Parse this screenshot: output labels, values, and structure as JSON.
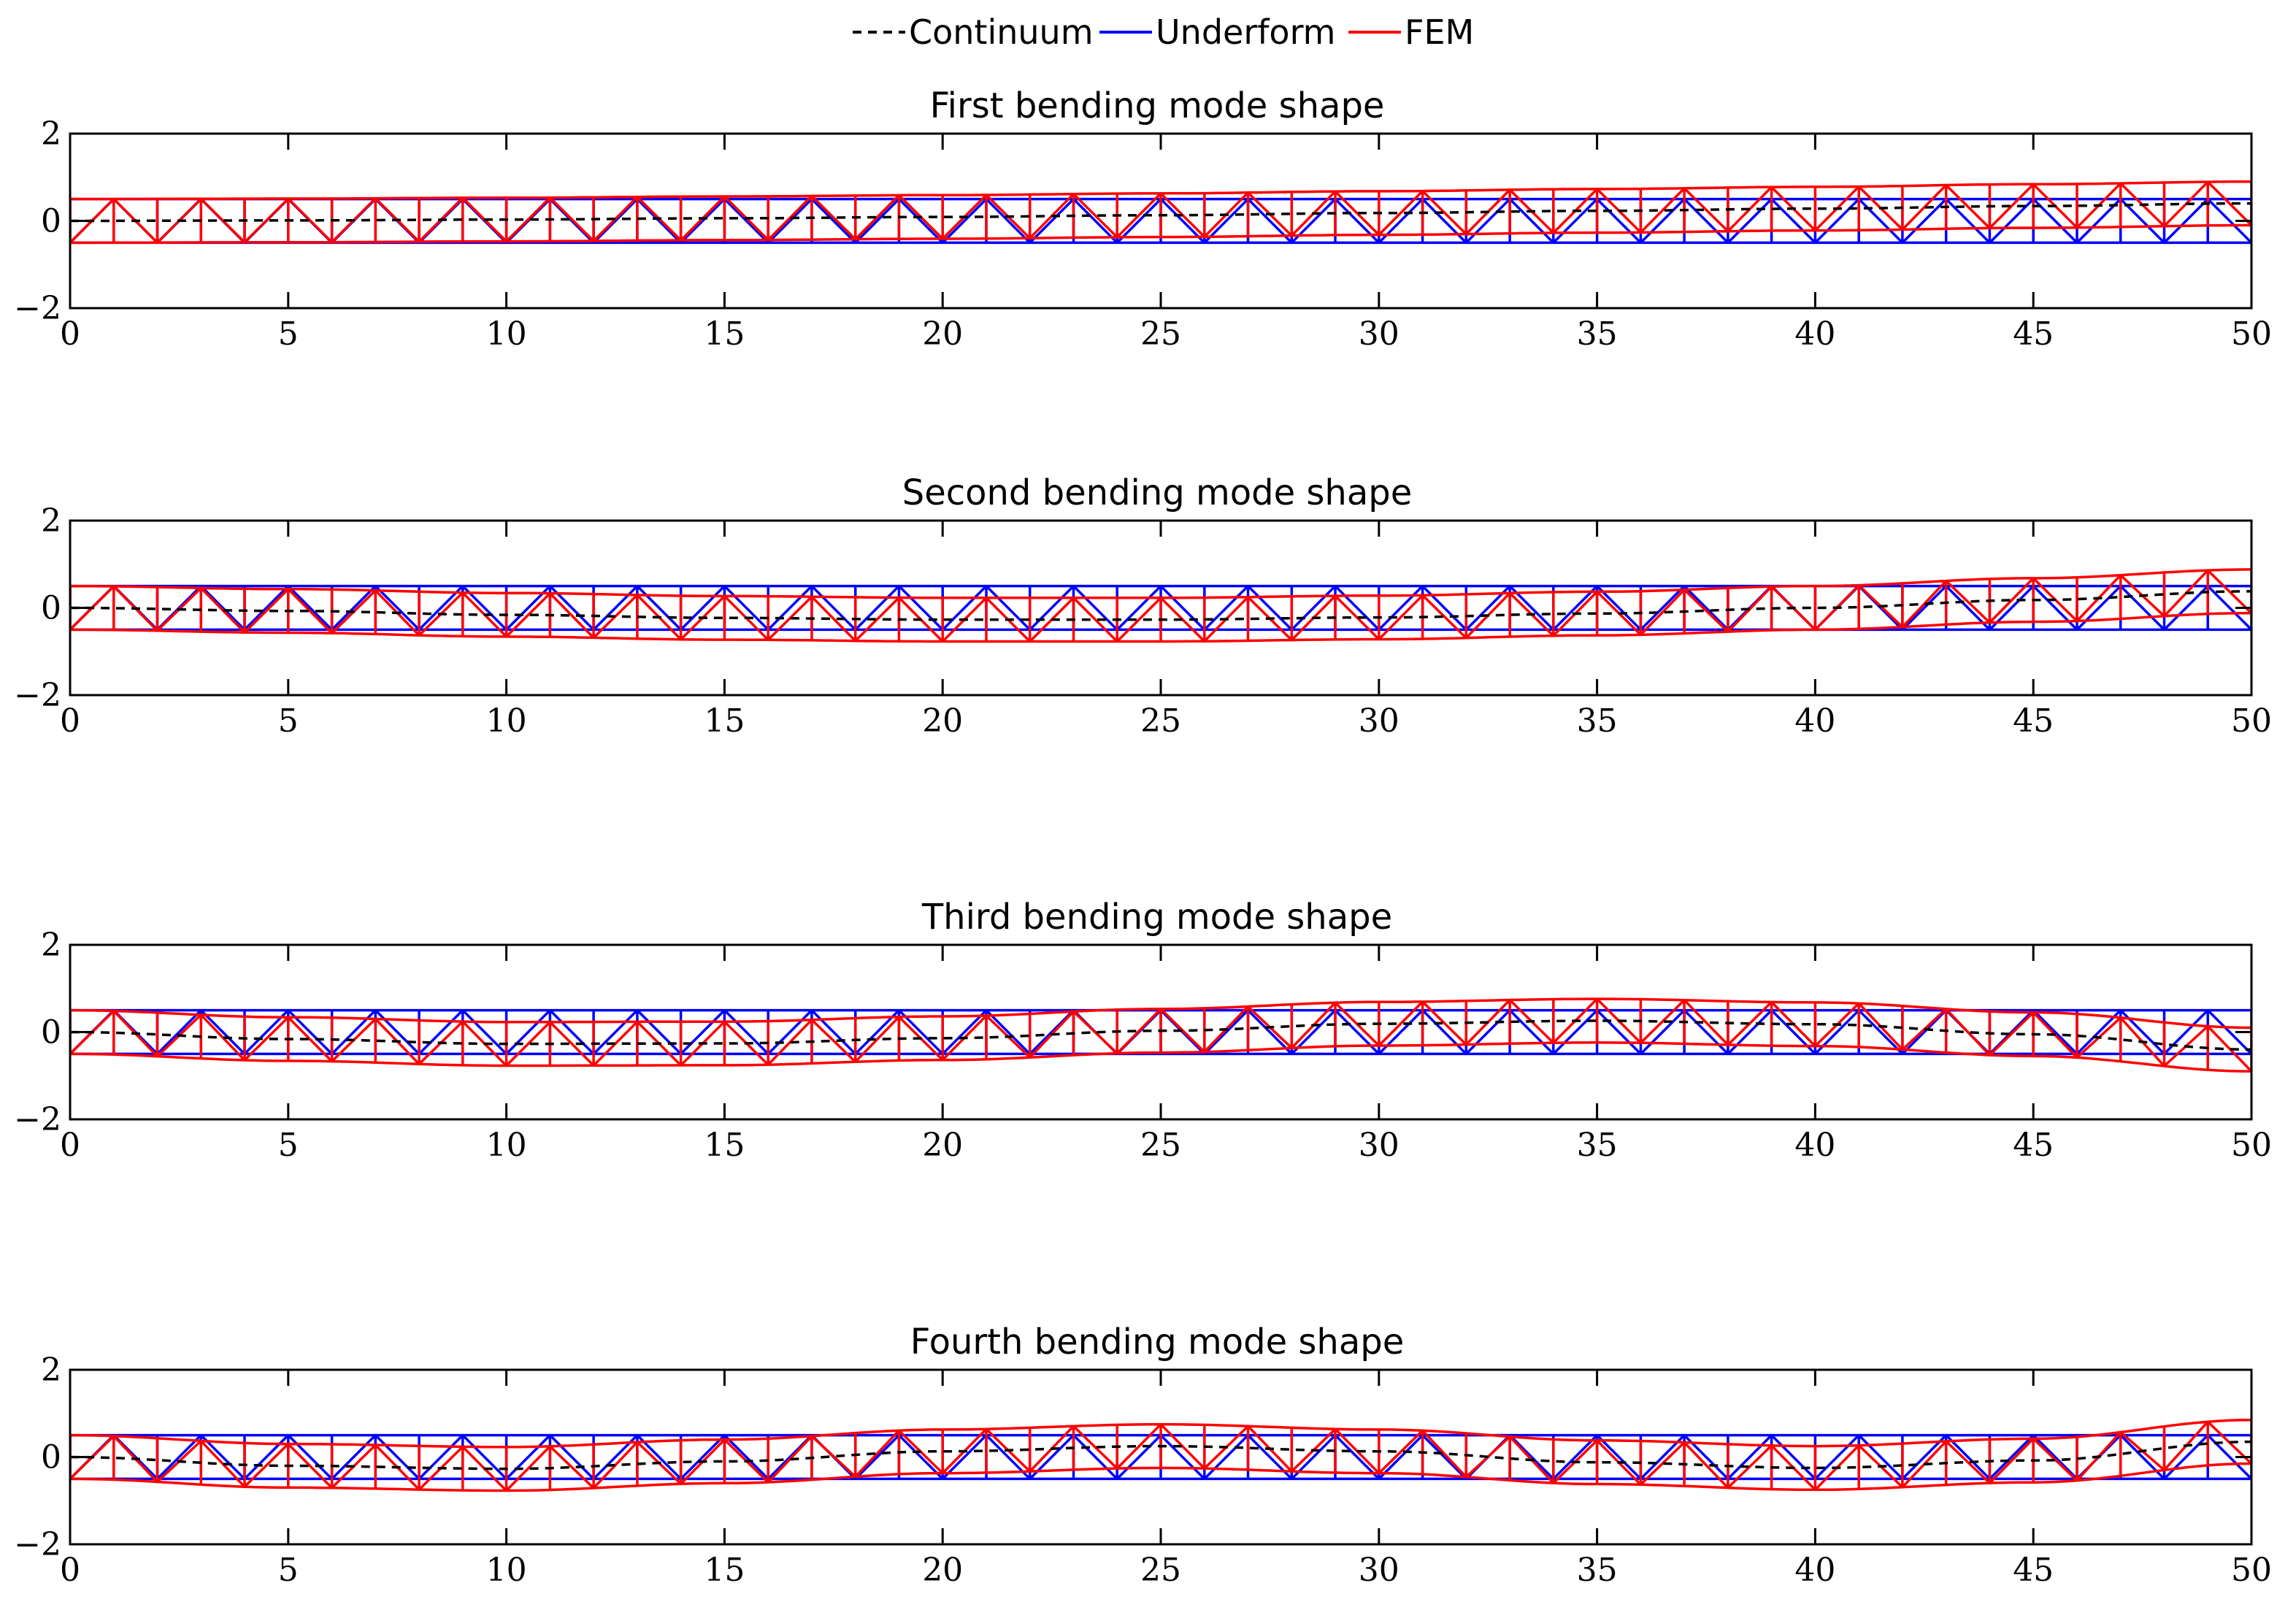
{
  "colors": {
    "continuum": "#000000",
    "underform": "#0000ff",
    "fem": "#ff0000",
    "axis": "#000000",
    "background": "#ffffff"
  },
  "legend": {
    "entries": [
      {
        "label": "Continuum",
        "style": "dashed",
        "color": "#000000"
      },
      {
        "label": "Underform",
        "style": "solid",
        "color": "#0000ff"
      },
      {
        "label": "FEM",
        "style": "solid",
        "color": "#ff0000"
      }
    ],
    "placement": "top-center"
  },
  "chart_data": [
    {
      "type": "line",
      "title": "First bending mode shape",
      "xlabel": "",
      "ylabel": "",
      "xlim": [
        0,
        50
      ],
      "ylim": [
        -2,
        2
      ],
      "xticks": [
        0,
        5,
        10,
        15,
        20,
        25,
        30,
        35,
        40,
        45,
        50
      ],
      "yticks": [
        -2,
        0,
        2
      ],
      "xtick_labels": [
        "0",
        "5",
        "10",
        "15",
        "20",
        "25",
        "30",
        "35",
        "40",
        "45",
        "50"
      ],
      "ytick_labels": [
        "−2",
        "0",
        "2"
      ],
      "truss": {
        "panels": 50,
        "half_height": 0.5
      },
      "continuum_samples": {
        "x": [
          0,
          5,
          10,
          15,
          20,
          25,
          30,
          35,
          40,
          45,
          50
        ],
        "y": [
          0,
          0.01,
          0.03,
          0.06,
          0.09,
          0.13,
          0.18,
          0.23,
          0.28,
          0.34,
          0.4
        ]
      },
      "mode": {
        "kind": "first",
        "amplitude": 0.4
      }
    },
    {
      "type": "line",
      "title": "Second bending mode shape",
      "xlabel": "",
      "ylabel": "",
      "xlim": [
        0,
        50
      ],
      "ylim": [
        -2,
        2
      ],
      "xticks": [
        0,
        5,
        10,
        15,
        20,
        25,
        30,
        35,
        40,
        45,
        50
      ],
      "yticks": [
        -2,
        0,
        2
      ],
      "xtick_labels": [
        "0",
        "5",
        "10",
        "15",
        "20",
        "25",
        "30",
        "35",
        "40",
        "45",
        "50"
      ],
      "ytick_labels": [
        "−2",
        "0",
        "2"
      ],
      "truss": {
        "panels": 50,
        "half_height": 0.5
      },
      "continuum_samples": {
        "x": [
          0,
          5,
          10,
          15,
          20,
          25,
          30,
          35,
          40,
          45,
          50
        ],
        "y": [
          0,
          -0.07,
          -0.16,
          -0.23,
          -0.27,
          -0.27,
          -0.22,
          -0.13,
          0.0,
          0.18,
          0.38
        ]
      },
      "mode": {
        "kind": "second",
        "amplitude": 0.38
      }
    },
    {
      "type": "line",
      "title": "Third bending mode shape",
      "xlabel": "",
      "ylabel": "",
      "xlim": [
        0,
        50
      ],
      "ylim": [
        -2,
        2
      ],
      "xticks": [
        0,
        5,
        10,
        15,
        20,
        25,
        30,
        35,
        40,
        45,
        50
      ],
      "yticks": [
        -2,
        0,
        2
      ],
      "xtick_labels": [
        "0",
        "5",
        "10",
        "15",
        "20",
        "25",
        "30",
        "35",
        "40",
        "45",
        "50"
      ],
      "ytick_labels": [
        "−2",
        "0",
        "2"
      ],
      "truss": {
        "panels": 50,
        "half_height": 0.5
      },
      "continuum_samples": {
        "x": [
          0,
          5,
          10,
          15,
          20,
          25,
          30,
          35,
          40,
          45,
          50
        ],
        "y": [
          0,
          -0.16,
          -0.27,
          -0.26,
          -0.14,
          0.03,
          0.19,
          0.26,
          0.18,
          -0.05,
          -0.4
        ]
      },
      "mode": {
        "kind": "third",
        "amplitude": 0.4
      }
    },
    {
      "type": "line",
      "title": "Fourth bending mode shape",
      "xlabel": "",
      "ylabel": "",
      "xlim": [
        0,
        50
      ],
      "ylim": [
        -2,
        2
      ],
      "xticks": [
        0,
        5,
        10,
        15,
        20,
        25,
        30,
        35,
        40,
        45,
        50
      ],
      "yticks": [
        -2,
        0,
        2
      ],
      "xtick_labels": [
        "0",
        "5",
        "10",
        "15",
        "20",
        "25",
        "30",
        "35",
        "40",
        "45",
        "50"
      ],
      "ytick_labels": [
        "−2",
        "0",
        "2"
      ],
      "truss": {
        "panels": 50,
        "half_height": 0.5
      },
      "continuum_samples": {
        "x": [
          0,
          5,
          10,
          15,
          20,
          25,
          30,
          35,
          40,
          45,
          50
        ],
        "y": [
          0,
          -0.2,
          -0.27,
          -0.1,
          0.13,
          0.25,
          0.13,
          -0.12,
          -0.25,
          -0.08,
          0.35
        ]
      },
      "mode": {
        "kind": "fourth",
        "amplitude": 0.35
      }
    }
  ]
}
